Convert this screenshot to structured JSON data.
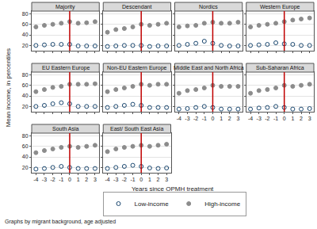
{
  "chart_data": {
    "type": "scatter",
    "y_title": "Mean income, in percentiles",
    "x_title": "Years since OPMH treatment",
    "note": "Graphs by migrant background, age adjusted",
    "x": [
      -4,
      -3,
      -2,
      -1,
      0,
      1,
      2,
      3
    ],
    "xlim": [
      -4.5,
      3.5
    ],
    "xticks": [
      -4,
      -3,
      -2,
      -1,
      0,
      1,
      2,
      3
    ],
    "ylim": [
      10,
      85
    ],
    "yticks": [
      20,
      40,
      60,
      80
    ],
    "grid": true,
    "legend": "bottom",
    "reference_x": 0,
    "panels": [
      {
        "title": "Majority",
        "series": [
          {
            "name": "Low-income",
            "color": "#1a476f",
            "marker": "circle-open",
            "values": [
              20,
              21,
              22,
              22,
              22,
              19,
              19,
              19
            ]
          },
          {
            "name": "High-income",
            "color": "#8c8c8c",
            "marker": "circle",
            "values": [
              55,
              58,
              60,
              62,
              65,
              62,
              63,
              65
            ]
          }
        ]
      },
      {
        "title": "Descendant",
        "series": [
          {
            "name": "Low-income",
            "color": "#1a476f",
            "marker": "circle-open",
            "values": [
              18,
              19,
              20,
              20,
              20,
              18,
              19,
              19
            ]
          },
          {
            "name": "High-income",
            "color": "#8c8c8c",
            "marker": "circle",
            "values": [
              45,
              50,
              52,
              55,
              60,
              58,
              60,
              62
            ]
          }
        ]
      },
      {
        "title": "Nordics",
        "series": [
          {
            "name": "Low-income",
            "color": "#1a476f",
            "marker": "circle-open",
            "values": [
              20,
              22,
              24,
              28,
              24,
              20,
              19,
              19
            ]
          },
          {
            "name": "High-income",
            "color": "#8c8c8c",
            "marker": "circle",
            "values": [
              55,
              57,
              58,
              62,
              64,
              62,
              62,
              64
            ]
          }
        ]
      },
      {
        "title": "Western Europe",
        "series": [
          {
            "name": "Low-income",
            "color": "#1a476f",
            "marker": "circle-open",
            "values": [
              20,
              21,
              22,
              25,
              23,
              22,
              20,
              20
            ]
          },
          {
            "name": "High-income",
            "color": "#8c8c8c",
            "marker": "circle",
            "values": [
              55,
              58,
              60,
              62,
              65,
              68,
              70,
              72
            ]
          }
        ]
      },
      {
        "title": "EU Eastern Europe",
        "series": [
          {
            "name": "Low-income",
            "color": "#1a476f",
            "marker": "circle-open",
            "values": [
              20,
              22,
              25,
              27,
              25,
              20,
              20,
              20
            ]
          },
          {
            "name": "High-income",
            "color": "#8c8c8c",
            "marker": "circle",
            "values": [
              48,
              52,
              56,
              58,
              62,
              62,
              62,
              63
            ]
          }
        ]
      },
      {
        "title": "Non-EU Eastern Europe",
        "series": [
          {
            "name": "Low-income",
            "color": "#1a476f",
            "marker": "circle-open",
            "values": [
              18,
              20,
              22,
              24,
              22,
              18,
              18,
              18
            ]
          },
          {
            "name": "High-income",
            "color": "#8c8c8c",
            "marker": "circle",
            "values": [
              48,
              52,
              55,
              58,
              62,
              60,
              62,
              62
            ]
          }
        ]
      },
      {
        "title": "Middle East and North Africa",
        "series": [
          {
            "name": "Low-income",
            "color": "#1a476f",
            "marker": "circle-open",
            "values": [
              15,
              16,
              18,
              20,
              18,
              15,
              15,
              15
            ]
          },
          {
            "name": "High-income",
            "color": "#8c8c8c",
            "marker": "circle",
            "values": [
              45,
              50,
              52,
              55,
              60,
              58,
              58,
              58
            ]
          }
        ]
      },
      {
        "title": "Sub-Saharan Africa",
        "series": [
          {
            "name": "Low-income",
            "color": "#1a476f",
            "marker": "circle-open",
            "values": [
              15,
              17,
              18,
              20,
              18,
              15,
              15,
              16
            ]
          },
          {
            "name": "High-income",
            "color": "#8c8c8c",
            "marker": "circle",
            "values": [
              45,
              50,
              52,
              55,
              60,
              58,
              60,
              62
            ]
          }
        ]
      },
      {
        "title": "South Asia",
        "series": [
          {
            "name": "Low-income",
            "color": "#1a476f",
            "marker": "circle-open",
            "values": [
              17,
              18,
              20,
              22,
              20,
              18,
              18,
              18
            ]
          },
          {
            "name": "High-income",
            "color": "#8c8c8c",
            "marker": "circle",
            "values": [
              48,
              52,
              55,
              58,
              60,
              58,
              60,
              62
            ]
          }
        ]
      },
      {
        "title": "East/ South East Asia",
        "series": [
          {
            "name": "Low-income",
            "color": "#1a476f",
            "marker": "circle-open",
            "values": [
              18,
              20,
              22,
              24,
              22,
              19,
              18,
              19
            ]
          },
          {
            "name": "High-income",
            "color": "#8c8c8c",
            "marker": "circle",
            "values": [
              50,
              55,
              58,
              60,
              62,
              60,
              62,
              64
            ]
          }
        ]
      }
    ]
  }
}
